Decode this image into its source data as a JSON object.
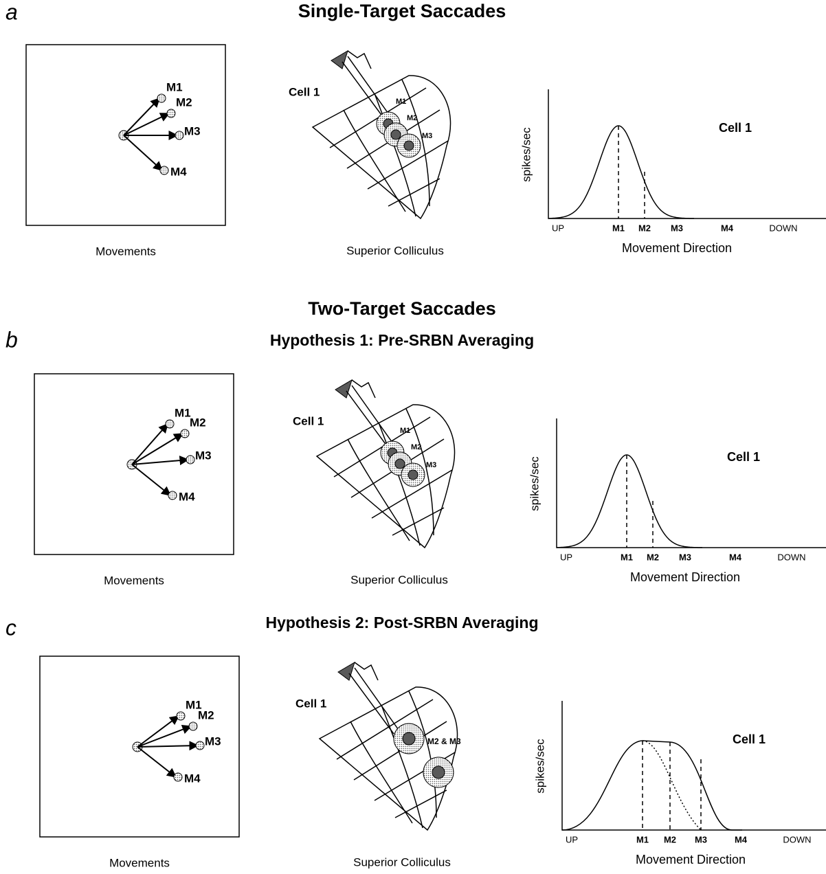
{
  "panels": [
    {
      "letter": "a",
      "heading": "Single-Target Saccades",
      "movements": {
        "labels": [
          "M1",
          "M2",
          "M3",
          "M4"
        ],
        "caption": "Movements"
      },
      "colliculus": {
        "cell": "Cell 1",
        "labels": [
          "M1",
          "M2",
          "M3"
        ],
        "caption": "Superior Colliculus"
      },
      "plot": {
        "y_label": "spikes/sec",
        "cell": "Cell 1",
        "x_ticks": [
          "UP",
          "M1",
          "M2",
          "M3",
          "M4",
          "DOWN"
        ],
        "x_label": "Movement Direction"
      }
    },
    {
      "letter": "b",
      "section_title": "Two-Target Saccades",
      "heading": "Hypothesis 1:  Pre-SRBN Averaging",
      "movements": {
        "labels": [
          "M1",
          "M2",
          "M3",
          "M4"
        ],
        "caption": "Movements"
      },
      "colliculus": {
        "cell": "Cell 1",
        "labels": [
          "M1",
          "M2",
          "M3"
        ],
        "caption": "Superior Colliculus"
      },
      "plot": {
        "y_label": "spikes/sec",
        "cell": "Cell 1",
        "x_ticks": [
          "UP",
          "M1",
          "M2",
          "M3",
          "M4",
          "DOWN"
        ],
        "x_label": "Movement Direction"
      }
    },
    {
      "letter": "c",
      "heading": "Hypothesis 2:  Post-SRBN Averaging",
      "movements": {
        "labels": [
          "M1",
          "M2",
          "M3",
          "M4"
        ],
        "caption": "Movements"
      },
      "colliculus": {
        "cell": "Cell 1",
        "labels": [
          "M2 & M3"
        ],
        "caption": "Superior Colliculus"
      },
      "plot": {
        "y_label": "spikes/sec",
        "cell": "Cell 1",
        "x_ticks": [
          "UP",
          "M1",
          "M2",
          "M3",
          "M4",
          "DOWN"
        ],
        "x_label": "Movement Direction"
      }
    }
  ]
}
